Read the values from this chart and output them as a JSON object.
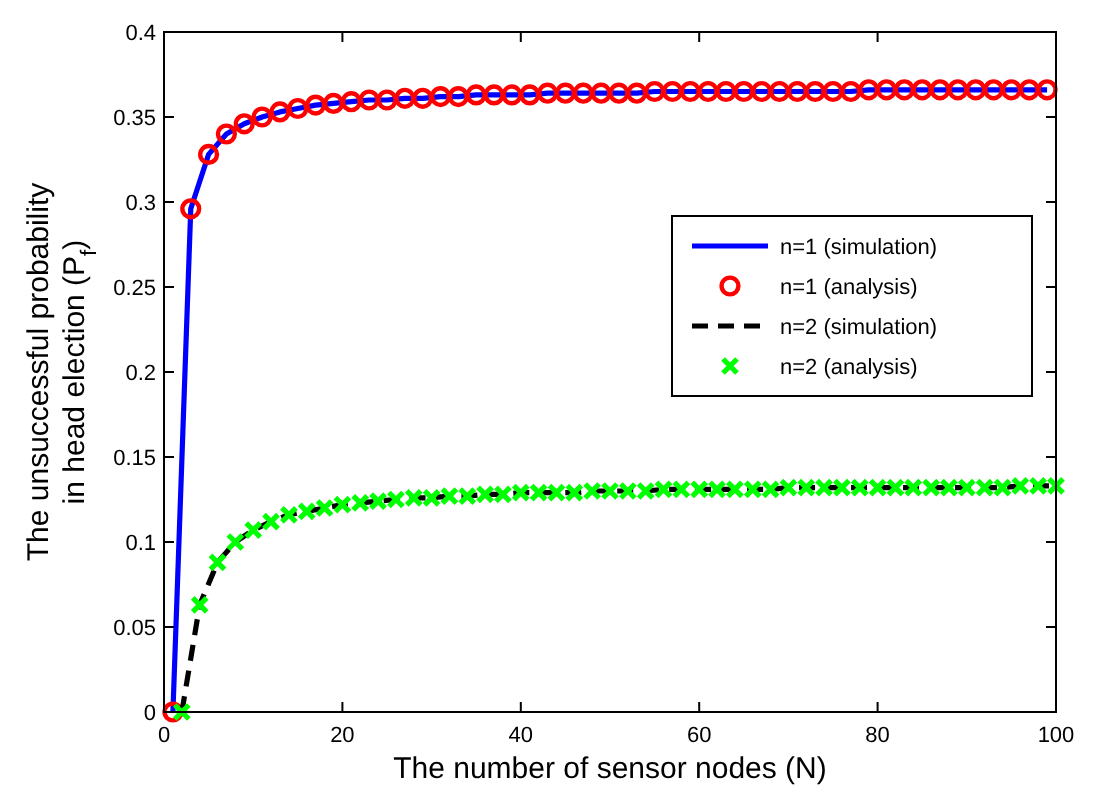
{
  "chart_data": {
    "type": "line",
    "xlabel": "The number of sensor nodes (N)",
    "ylabel": "The unsuccessful probability\nin head election (P$_{f}$)",
    "xlim": [
      0,
      100
    ],
    "xticks": [
      0,
      20,
      40,
      60,
      80,
      100
    ],
    "ylim": [
      0,
      0.4
    ],
    "yticks": [
      0,
      0.05,
      0.1,
      0.15,
      0.2,
      0.25,
      0.3,
      0.35,
      0.4
    ],
    "grid": false,
    "legend": "right",
    "series": [
      {
        "name": "n=1 (simulation)",
        "color": "#0000ff",
        "line_style": "solid",
        "marker": "none",
        "x": [
          1,
          3,
          5,
          7,
          9,
          11,
          13,
          15,
          17,
          19,
          21,
          23,
          25,
          27,
          29,
          31,
          33,
          35,
          37,
          39,
          41,
          43,
          45,
          47,
          49,
          51,
          53,
          55,
          57,
          59,
          61,
          63,
          65,
          67,
          69,
          71,
          73,
          75,
          77,
          79,
          81,
          83,
          85,
          87,
          89,
          91,
          93,
          95,
          97,
          99
        ],
        "values": [
          0,
          0.296,
          0.328,
          0.34,
          0.346,
          0.35,
          0.353,
          0.355,
          0.357,
          0.358,
          0.359,
          0.36,
          0.36,
          0.361,
          0.361,
          0.362,
          0.362,
          0.363,
          0.363,
          0.363,
          0.363,
          0.364,
          0.364,
          0.364,
          0.364,
          0.364,
          0.364,
          0.365,
          0.365,
          0.365,
          0.365,
          0.365,
          0.365,
          0.365,
          0.365,
          0.365,
          0.365,
          0.365,
          0.365,
          0.366,
          0.366,
          0.366,
          0.366,
          0.366,
          0.366,
          0.366,
          0.366,
          0.366,
          0.366,
          0.366
        ]
      },
      {
        "name": "n=1 (analysis)",
        "type": "scatter",
        "color": "#ff0000",
        "marker": "circle",
        "x": [
          1,
          3,
          5,
          7,
          9,
          11,
          13,
          15,
          17,
          19,
          21,
          23,
          25,
          27,
          29,
          31,
          33,
          35,
          37,
          39,
          41,
          43,
          45,
          47,
          49,
          51,
          53,
          55,
          57,
          59,
          61,
          63,
          65,
          67,
          69,
          71,
          73,
          75,
          77,
          79,
          81,
          83,
          85,
          87,
          89,
          91,
          93,
          95,
          97,
          99
        ],
        "values": [
          0,
          0.296,
          0.328,
          0.34,
          0.346,
          0.35,
          0.353,
          0.355,
          0.357,
          0.358,
          0.359,
          0.36,
          0.36,
          0.361,
          0.361,
          0.362,
          0.362,
          0.363,
          0.363,
          0.363,
          0.363,
          0.364,
          0.364,
          0.364,
          0.364,
          0.364,
          0.364,
          0.365,
          0.365,
          0.365,
          0.365,
          0.365,
          0.365,
          0.365,
          0.365,
          0.365,
          0.365,
          0.365,
          0.365,
          0.366,
          0.366,
          0.366,
          0.366,
          0.366,
          0.366,
          0.366,
          0.366,
          0.366,
          0.366,
          0.366
        ]
      },
      {
        "name": "n=2 (simulation)",
        "color": "#000000",
        "line_style": "dashed",
        "marker": "none",
        "x": [
          2,
          4,
          6,
          8,
          10,
          12,
          14,
          16,
          18,
          20,
          22,
          24,
          26,
          28,
          30,
          32,
          34,
          36,
          38,
          40,
          42,
          44,
          46,
          48,
          50,
          52,
          54,
          56,
          58,
          60,
          62,
          64,
          66,
          68,
          70,
          72,
          74,
          76,
          78,
          80,
          82,
          84,
          86,
          88,
          90,
          92,
          94,
          96,
          98,
          100
        ],
        "values": [
          0,
          0.063,
          0.088,
          0.1,
          0.107,
          0.112,
          0.116,
          0.118,
          0.12,
          0.122,
          0.123,
          0.124,
          0.125,
          0.126,
          0.126,
          0.127,
          0.127,
          0.128,
          0.128,
          0.129,
          0.129,
          0.129,
          0.129,
          0.13,
          0.13,
          0.13,
          0.13,
          0.131,
          0.131,
          0.131,
          0.131,
          0.131,
          0.131,
          0.131,
          0.132,
          0.132,
          0.132,
          0.132,
          0.132,
          0.132,
          0.132,
          0.132,
          0.132,
          0.132,
          0.132,
          0.132,
          0.132,
          0.133,
          0.133,
          0.133
        ]
      },
      {
        "name": "n=2 (analysis)",
        "type": "scatter",
        "color": "#00ff00",
        "marker": "cross",
        "x": [
          2,
          4,
          6,
          8,
          10,
          12,
          14,
          16,
          18,
          20,
          22,
          24,
          26,
          28,
          30,
          32,
          34,
          36,
          38,
          40,
          42,
          44,
          46,
          48,
          50,
          52,
          54,
          56,
          58,
          60,
          62,
          64,
          66,
          68,
          70,
          72,
          74,
          76,
          78,
          80,
          82,
          84,
          86,
          88,
          90,
          92,
          94,
          96,
          98,
          100
        ],
        "values": [
          0,
          0.063,
          0.088,
          0.1,
          0.107,
          0.112,
          0.116,
          0.118,
          0.12,
          0.122,
          0.123,
          0.124,
          0.125,
          0.126,
          0.126,
          0.127,
          0.127,
          0.128,
          0.128,
          0.129,
          0.129,
          0.129,
          0.129,
          0.13,
          0.13,
          0.13,
          0.13,
          0.131,
          0.131,
          0.131,
          0.131,
          0.131,
          0.131,
          0.131,
          0.132,
          0.132,
          0.132,
          0.132,
          0.132,
          0.132,
          0.132,
          0.132,
          0.132,
          0.132,
          0.132,
          0.132,
          0.132,
          0.133,
          0.133,
          0.133
        ]
      }
    ]
  }
}
